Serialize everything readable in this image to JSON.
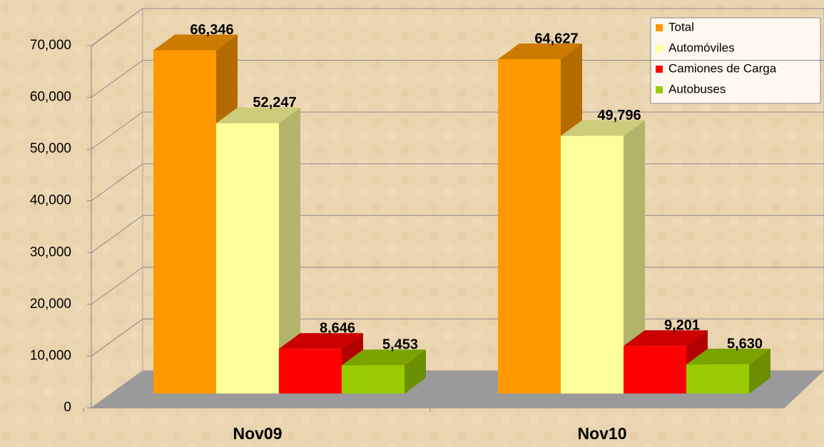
{
  "chart_data": {
    "type": "bar3d",
    "categories": [
      "Nov09",
      "Nov10"
    ],
    "series": [
      {
        "name": "Total",
        "color": "#ff9900",
        "values": [
          66346,
          64627
        ],
        "value_labels": [
          "66,346",
          "64,627"
        ]
      },
      {
        "name": "Automóviles",
        "color": "#ffff99",
        "values": [
          52247,
          49796
        ],
        "value_labels": [
          "52,247",
          "49,796"
        ]
      },
      {
        "name": "Camiones de Carga",
        "color": "#ff0000",
        "values": [
          8646,
          9201
        ],
        "value_labels": [
          "8,646",
          "9,201"
        ]
      },
      {
        "name": "Autobuses",
        "color": "#99cc00",
        "values": [
          5453,
          5630
        ],
        "value_labels": [
          "5,453",
          "5,630"
        ]
      }
    ],
    "ylim": [
      0,
      70000
    ],
    "yticks": [
      0,
      {
        "value": 10000,
        "label": "10,000"
      },
      {
        "value": 20000,
        "label": "20,000"
      },
      {
        "value": 30000,
        "label": "30,000"
      },
      {
        "value": 40000,
        "label": "40,000"
      },
      {
        "value": 50000,
        "label": "50,000"
      },
      {
        "value": 60000,
        "label": "60,000"
      },
      {
        "value": 70000,
        "label": "70,000"
      }
    ],
    "grid": true,
    "legend": "top-right"
  }
}
